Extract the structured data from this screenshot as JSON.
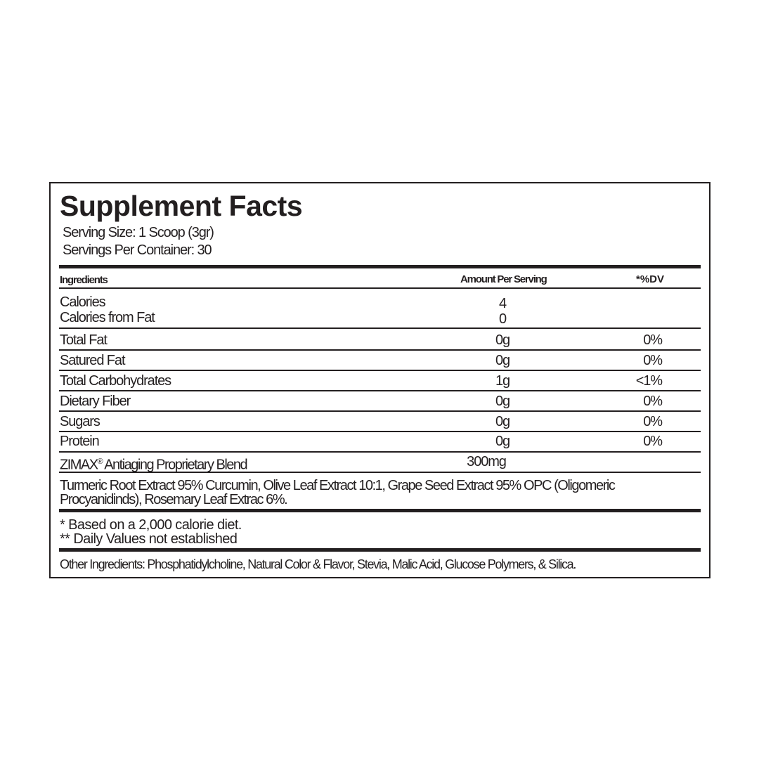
{
  "title": "Supplement Facts",
  "serving_size": "Serving Size: 1 Scoop (3gr)",
  "servings_per_container": "Servings Per Container: 30",
  "columns": {
    "ingredients": "Ingredients",
    "amount": "Amount Per Serving",
    "dv": "*%DV"
  },
  "calories": {
    "label": "Calories",
    "amount": "4"
  },
  "calories_from_fat": {
    "label": "Calories from Fat",
    "amount": "0"
  },
  "rows": [
    {
      "label": "Total Fat",
      "amount": "0g",
      "dv": "0%"
    },
    {
      "label": "Satured Fat",
      "amount": "0g",
      "dv": "0%"
    },
    {
      "label": "Total Carbohydrates",
      "amount": "1g",
      "dv": "<1%"
    },
    {
      "label": "Dietary Fiber",
      "amount": "0g",
      "dv": "0%"
    },
    {
      "label": "Sugars",
      "amount": "0g",
      "dv": "0%"
    },
    {
      "label": "Protein",
      "amount": "0g",
      "dv": "0%"
    }
  ],
  "blend": {
    "brand": "ZIMAX",
    "mark": "®",
    "label": " Antiaging Proprietary Blend",
    "amount": "300mg"
  },
  "blend_ingredients": {
    "line1": "Turmeric Root Extract 95% Curcumin, Olive Leaf Extract 10:1, Grape Seed Extract 95% OPC (Oligomeric",
    "line2": "Procyanidinds), Rosemary Leaf Extrac 6%."
  },
  "footnotes": [
    "* Based on a 2,000 calorie diet.",
    "** Daily Values not established"
  ],
  "other_ingredients": "Other Ingredients: Phosphatidylcholine, Natural Color & Flavor, Stevia, Malic Acid, Glucose Polymers, & Silica."
}
